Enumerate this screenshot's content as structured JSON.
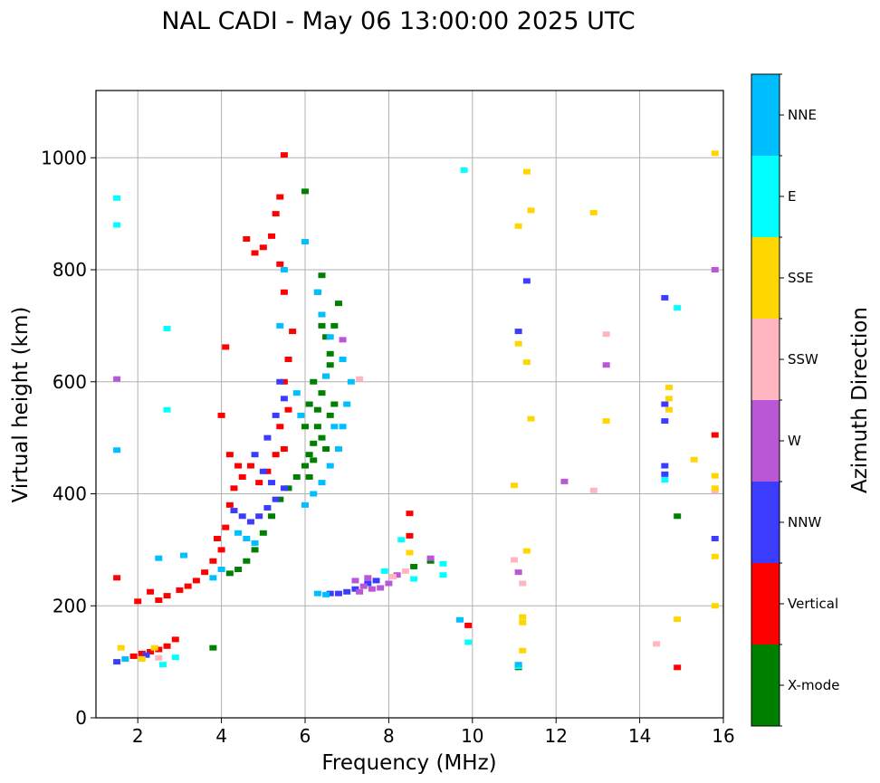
{
  "chart_data": {
    "type": "scatter",
    "title": "NAL CADI - May 06 13:00:00 2025 UTC",
    "xlabel": "Frequency (MHz)",
    "ylabel": "Virtual height (km)",
    "xlim": [
      1,
      16
    ],
    "ylim": [
      0,
      1120
    ],
    "xticks": [
      2,
      4,
      6,
      8,
      10,
      12,
      14,
      16
    ],
    "yticks": [
      0,
      200,
      400,
      600,
      800,
      1000
    ],
    "grid": true,
    "colorbar": {
      "label": "Azimuth Direction",
      "categories": [
        {
          "name": "X-mode",
          "color": "#008000"
        },
        {
          "name": "Vertical",
          "color": "#ff0000"
        },
        {
          "name": "NNW",
          "color": "#3c3cff"
        },
        {
          "name": "W",
          "color": "#b957d6"
        },
        {
          "name": "SSW",
          "color": "#ffb6c1"
        },
        {
          "name": "SSE",
          "color": "#ffd700"
        },
        {
          "name": "E",
          "color": "#00ffff"
        },
        {
          "name": "NNE",
          "color": "#00bfff"
        }
      ]
    },
    "series": [
      {
        "name": "X-mode",
        "points": [
          [
            4.2,
            258
          ],
          [
            4.4,
            265
          ],
          [
            4.6,
            280
          ],
          [
            4.8,
            300
          ],
          [
            5.0,
            330
          ],
          [
            5.2,
            360
          ],
          [
            5.4,
            390
          ],
          [
            5.6,
            410
          ],
          [
            5.8,
            430
          ],
          [
            6.0,
            450
          ],
          [
            6.1,
            470
          ],
          [
            6.2,
            490
          ],
          [
            6.3,
            520
          ],
          [
            6.3,
            550
          ],
          [
            6.4,
            580
          ],
          [
            6.5,
            610
          ],
          [
            6.6,
            650
          ],
          [
            6.7,
            700
          ],
          [
            6.8,
            740
          ],
          [
            6.4,
            790
          ],
          [
            6.3,
            760
          ],
          [
            6.4,
            700
          ],
          [
            6.5,
            680
          ],
          [
            6.6,
            630
          ],
          [
            6.2,
            600
          ],
          [
            6.1,
            560
          ],
          [
            6.0,
            520
          ],
          [
            6.2,
            460
          ],
          [
            6.1,
            430
          ],
          [
            6.4,
            500
          ],
          [
            6.5,
            480
          ],
          [
            6.6,
            540
          ],
          [
            6.7,
            560
          ],
          [
            6.0,
            940
          ],
          [
            3.8,
            125
          ],
          [
            8.6,
            270
          ],
          [
            9.0,
            280
          ],
          [
            14.9,
            360
          ],
          [
            11.1,
            90
          ]
        ]
      },
      {
        "name": "Vertical",
        "points": [
          [
            1.9,
            110
          ],
          [
            2.1,
            115
          ],
          [
            2.3,
            118
          ],
          [
            2.5,
            122
          ],
          [
            2.7,
            128
          ],
          [
            2.9,
            140
          ],
          [
            2.5,
            210
          ],
          [
            2.7,
            218
          ],
          [
            3.0,
            228
          ],
          [
            3.2,
            235
          ],
          [
            3.4,
            245
          ],
          [
            3.6,
            260
          ],
          [
            3.8,
            280
          ],
          [
            4.0,
            300
          ],
          [
            3.9,
            320
          ],
          [
            4.1,
            340
          ],
          [
            4.2,
            380
          ],
          [
            4.3,
            410
          ],
          [
            4.5,
            430
          ],
          [
            4.7,
            450
          ],
          [
            4.9,
            420
          ],
          [
            5.1,
            440
          ],
          [
            5.3,
            470
          ],
          [
            5.5,
            480
          ],
          [
            5.4,
            520
          ],
          [
            5.6,
            550
          ],
          [
            5.5,
            600
          ],
          [
            5.6,
            640
          ],
          [
            5.7,
            690
          ],
          [
            5.5,
            760
          ],
          [
            5.4,
            810
          ],
          [
            5.2,
            860
          ],
          [
            5.0,
            840
          ],
          [
            4.8,
            830
          ],
          [
            4.6,
            855
          ],
          [
            5.3,
            900
          ],
          [
            5.4,
            930
          ],
          [
            5.5,
            1005
          ],
          [
            4.2,
            470
          ],
          [
            4.4,
            450
          ],
          [
            4.0,
            540
          ],
          [
            4.1,
            662
          ],
          [
            2.3,
            225
          ],
          [
            2.0,
            208
          ],
          [
            1.5,
            250
          ],
          [
            8.5,
            325
          ],
          [
            8.5,
            365
          ],
          [
            9.9,
            165
          ],
          [
            15.8,
            505
          ],
          [
            14.9,
            90
          ]
        ]
      },
      {
        "name": "NNW",
        "points": [
          [
            4.3,
            370
          ],
          [
            4.5,
            360
          ],
          [
            4.7,
            350
          ],
          [
            4.9,
            360
          ],
          [
            5.1,
            375
          ],
          [
            5.3,
            390
          ],
          [
            5.5,
            410
          ],
          [
            5.2,
            420
          ],
          [
            5.0,
            440
          ],
          [
            4.8,
            470
          ],
          [
            5.1,
            500
          ],
          [
            5.3,
            540
          ],
          [
            5.5,
            570
          ],
          [
            5.4,
            600
          ],
          [
            6.6,
            222
          ],
          [
            6.8,
            222
          ],
          [
            7.0,
            225
          ],
          [
            7.2,
            230
          ],
          [
            7.5,
            240
          ],
          [
            7.7,
            245
          ],
          [
            11.1,
            690
          ],
          [
            11.3,
            780
          ],
          [
            14.6,
            750
          ],
          [
            14.6,
            560
          ],
          [
            14.6,
            530
          ],
          [
            14.6,
            450
          ],
          [
            14.6,
            435
          ],
          [
            1.5,
            100
          ],
          [
            2.2,
            112
          ],
          [
            15.8,
            320
          ]
        ]
      },
      {
        "name": "W",
        "points": [
          [
            7.4,
            235
          ],
          [
            7.6,
            230
          ],
          [
            7.8,
            232
          ],
          [
            8.0,
            240
          ],
          [
            7.2,
            245
          ],
          [
            7.5,
            250
          ],
          [
            8.2,
            255
          ],
          [
            7.3,
            225
          ],
          [
            9.0,
            285
          ],
          [
            11.1,
            260
          ],
          [
            13.2,
            630
          ],
          [
            12.2,
            422
          ],
          [
            15.8,
            800
          ],
          [
            1.5,
            605
          ],
          [
            6.9,
            675
          ]
        ]
      },
      {
        "name": "SSW",
        "points": [
          [
            8.1,
            252
          ],
          [
            8.4,
            262
          ],
          [
            11.0,
            282
          ],
          [
            11.2,
            240
          ],
          [
            12.9,
            406
          ],
          [
            14.4,
            132
          ],
          [
            13.2,
            685
          ],
          [
            15.8,
            405
          ],
          [
            7.3,
            605
          ],
          [
            2.5,
            107
          ]
        ]
      },
      {
        "name": "SSE",
        "points": [
          [
            1.6,
            125
          ],
          [
            2.1,
            105
          ],
          [
            2.4,
            125
          ],
          [
            11.2,
            180
          ],
          [
            11.2,
            170
          ],
          [
            11.2,
            120
          ],
          [
            11.1,
            878
          ],
          [
            11.1,
            668
          ],
          [
            11.3,
            635
          ],
          [
            11.4,
            534
          ],
          [
            11.3,
            298
          ],
          [
            11.0,
            415
          ],
          [
            11.3,
            975
          ],
          [
            11.4,
            906
          ],
          [
            12.9,
            902
          ],
          [
            13.2,
            530
          ],
          [
            14.7,
            590
          ],
          [
            14.7,
            570
          ],
          [
            14.7,
            550
          ],
          [
            15.3,
            461
          ],
          [
            15.8,
            432
          ],
          [
            15.8,
            410
          ],
          [
            15.8,
            1008
          ],
          [
            14.9,
            176
          ],
          [
            15.8,
            200
          ],
          [
            15.8,
            288
          ],
          [
            8.5,
            295
          ]
        ]
      },
      {
        "name": "E",
        "points": [
          [
            2.7,
            695
          ],
          [
            2.7,
            550
          ],
          [
            1.5,
            880
          ],
          [
            1.5,
            928
          ],
          [
            9.8,
            978
          ],
          [
            9.3,
            255
          ],
          [
            9.3,
            275
          ],
          [
            11.1,
            92
          ],
          [
            9.9,
            135
          ],
          [
            14.6,
            425
          ],
          [
            14.9,
            732
          ],
          [
            8.6,
            248
          ],
          [
            7.9,
            262
          ],
          [
            8.3,
            318
          ],
          [
            2.6,
            95
          ],
          [
            2.9,
            108
          ]
        ]
      },
      {
        "name": "NNE",
        "points": [
          [
            6.0,
            380
          ],
          [
            6.2,
            400
          ],
          [
            6.4,
            420
          ],
          [
            6.6,
            450
          ],
          [
            6.8,
            480
          ],
          [
            6.9,
            520
          ],
          [
            7.0,
            560
          ],
          [
            7.1,
            600
          ],
          [
            6.9,
            640
          ],
          [
            6.6,
            680
          ],
          [
            6.4,
            720
          ],
          [
            6.3,
            760
          ],
          [
            6.0,
            850
          ],
          [
            6.5,
            610
          ],
          [
            6.7,
            520
          ],
          [
            5.9,
            540
          ],
          [
            5.8,
            580
          ],
          [
            5.5,
            800
          ],
          [
            5.4,
            700
          ],
          [
            4.4,
            330
          ],
          [
            4.6,
            320
          ],
          [
            4.8,
            312
          ],
          [
            4.0,
            265
          ],
          [
            3.8,
            250
          ],
          [
            6.5,
            220
          ],
          [
            6.3,
            222
          ],
          [
            9.7,
            175
          ],
          [
            11.1,
            95
          ],
          [
            1.5,
            478
          ],
          [
            2.5,
            285
          ],
          [
            1.7,
            105
          ],
          [
            3.1,
            290
          ]
        ]
      }
    ]
  }
}
